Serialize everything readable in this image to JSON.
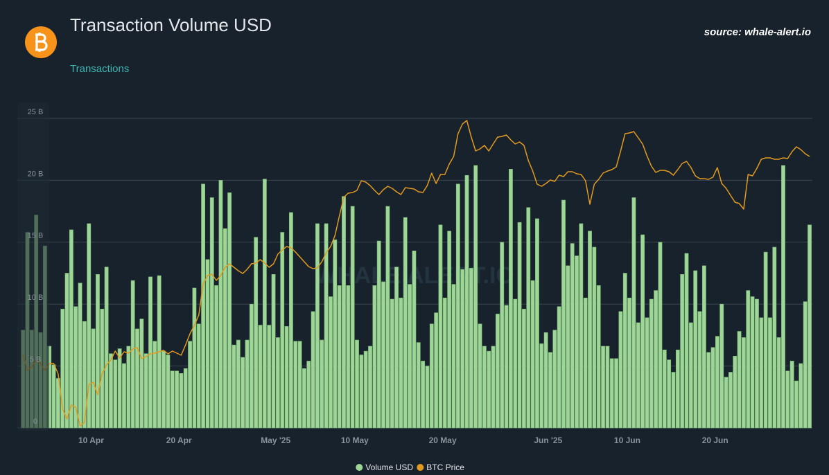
{
  "chart_data": {
    "type": "bar",
    "title": "Transaction Volume USD",
    "subtitle": "Transactions",
    "source": "source: whale-alert.io",
    "watermark": "WHALE ALERT.IO",
    "categories": [
      null,
      null,
      null,
      null,
      null,
      null,
      null,
      null,
      null,
      null,
      null,
      null,
      null,
      null,
      null,
      "10 Apr",
      null,
      null,
      null,
      null,
      null,
      null,
      null,
      null,
      null,
      null,
      null,
      null,
      null,
      null,
      null,
      null,
      null,
      null,
      null,
      "20 Apr",
      null,
      null,
      null,
      null,
      null,
      null,
      null,
      null,
      null,
      null,
      null,
      null,
      null,
      null,
      null,
      null,
      null,
      null,
      null,
      null,
      null,
      "May '25",
      null,
      null,
      null,
      null,
      null,
      null,
      null,
      null,
      null,
      null,
      null,
      null,
      null,
      null,
      null,
      null,
      null,
      "10 May",
      null,
      null,
      null,
      null,
      null,
      null,
      null,
      null,
      null,
      null,
      null,
      null,
      null,
      null,
      null,
      null,
      null,
      null,
      null,
      "20 May",
      null,
      null,
      null,
      null,
      null,
      null,
      null,
      null,
      null,
      null,
      null,
      null,
      null,
      null,
      null,
      null,
      null,
      null,
      null,
      null,
      null,
      null,
      null,
      "Jun '25",
      null,
      null,
      null,
      null,
      null,
      null,
      null,
      null,
      null,
      null,
      null,
      null,
      null,
      null,
      null,
      null,
      null,
      "10 Jun",
      null,
      null,
      null,
      null,
      null,
      null,
      null,
      null,
      null,
      null,
      null,
      null,
      null,
      null,
      null,
      null,
      null,
      null,
      null,
      "20 Jun",
      null,
      null,
      null,
      null,
      null,
      null,
      null,
      null,
      null,
      null,
      null,
      null,
      null,
      null,
      null,
      null,
      null,
      null,
      null,
      null,
      null,
      null
    ],
    "series": [
      {
        "name": "Volume USD",
        "color": "#9dd696",
        "values": [
          7.9,
          15.8,
          7.9,
          17.2,
          7.7,
          14.7,
          6.6,
          5.1,
          4.0,
          9.6,
          12.5,
          16.0,
          9.8,
          11.7,
          8.6,
          16.5,
          8.0,
          12.4,
          9.6,
          13.0,
          6.0,
          5.5,
          6.4,
          5.2,
          6.6,
          11.9,
          8.0,
          8.8,
          6.0,
          12.2,
          7.0,
          12.3,
          6.2,
          5.9,
          4.6,
          4.6,
          4.4,
          4.8,
          7.0,
          11.3,
          8.4,
          19.7,
          13.6,
          18.6,
          11.5,
          20.0,
          16.1,
          19.0,
          6.7,
          7.1,
          5.7,
          7.1,
          10.0,
          15.4,
          8.3,
          20.1,
          8.3,
          12.4,
          7.3,
          15.8,
          8.2,
          17.4,
          7.0,
          7.0,
          4.8,
          5.4,
          9.4,
          16.5,
          7.1,
          16.5,
          10.6,
          15.2,
          11.5,
          18.7,
          11.5,
          17.9,
          7.1,
          5.9,
          6.2,
          6.6,
          11.5,
          15.1,
          11.8,
          17.9,
          10.4,
          13.0,
          10.5,
          17.0,
          11.6,
          14.3,
          6.9,
          5.4,
          5.0,
          8.4,
          9.3,
          16.4,
          10.5,
          15.9,
          11.6,
          19.7,
          12.8,
          20.4,
          12.9,
          21.2,
          8.4,
          6.6,
          6.2,
          6.6,
          9.2,
          15.0,
          9.9,
          20.9,
          10.4,
          16.6,
          9.6,
          17.8,
          11.9,
          16.9,
          6.8,
          7.7,
          6.1,
          7.9,
          9.8,
          18.4,
          13.1,
          14.9,
          13.9,
          16.5,
          10.5,
          15.9,
          14.6,
          11.5,
          6.6,
          6.6,
          5.6,
          5.6,
          9.4,
          12.5,
          10.5,
          18.6,
          8.5,
          15.6,
          8.9,
          10.4,
          11.1,
          15.0,
          6.3,
          5.5,
          4.5,
          6.3,
          12.4,
          14.1,
          8.5,
          12.7,
          9.4,
          13.1,
          6.1,
          6.5,
          7.4,
          10.0,
          4.1,
          4.5,
          5.8,
          7.8,
          7.3,
          11.1,
          10.6,
          10.4,
          8.9,
          14.2,
          8.9,
          14.6,
          7.3,
          21.2,
          4.6,
          5.4,
          3.8,
          5.2,
          10.2,
          16.4
        ]
      },
      {
        "name": "BTC Price",
        "color": "#e39b1f",
        "type": "line",
        "axis": "y2",
        "values": [
          84480,
          82640,
          83040,
          83840,
          83440,
          82640,
          83440,
          83440,
          82240,
          78240,
          77040,
          78640,
          78400,
          76240,
          76640,
          81040,
          81280,
          79840,
          82240,
          83280,
          83840,
          84880,
          84080,
          84800,
          84640,
          85120,
          85280,
          84000,
          84240,
          84560,
          84640,
          84800,
          84960,
          84560,
          84880,
          84640,
          84400,
          85600,
          86880,
          87840,
          89040,
          92640,
          93600,
          93760,
          93040,
          93600,
          94560,
          94960,
          94560,
          94160,
          93840,
          94320,
          94960,
          95040,
          95440,
          95040,
          94560,
          94960,
          96080,
          96560,
          96960,
          96800,
          96320,
          95760,
          95200,
          94640,
          94400,
          94480,
          95200,
          96240,
          96960,
          98240,
          100480,
          102640,
          103120,
          103200,
          103440,
          104560,
          104400,
          104000,
          103440,
          102960,
          103520,
          103920,
          103680,
          103280,
          102960,
          103760,
          103680,
          103600,
          103280,
          103200,
          104000,
          105440,
          104240,
          105280,
          105280,
          106480,
          107360,
          110000,
          111120,
          111520,
          109600,
          108000,
          108240,
          108640,
          108000,
          108800,
          109600,
          109680,
          109840,
          109280,
          108800,
          109040,
          108640,
          106880,
          105680,
          104160,
          103920,
          104240,
          104640,
          104480,
          105200,
          105040,
          105600,
          105600,
          105360,
          105280,
          104560,
          101840,
          104160,
          104720,
          105440,
          105680,
          105840,
          106160,
          108000,
          110000,
          110080,
          110240,
          109520,
          108800,
          107440,
          106240,
          105520,
          105760,
          105760,
          105600,
          105200,
          105840,
          106560,
          106800,
          106080,
          105120,
          104800,
          104800,
          104720,
          104960,
          106080,
          104240,
          103680,
          102880,
          102080,
          101920,
          101280,
          105280,
          105120,
          106000,
          107040,
          107200,
          107200,
          107040,
          107040,
          107200,
          107120,
          107920,
          108480,
          108160,
          107680,
          107360
        ]
      }
    ],
    "ylim": [
      0,
      25
    ],
    "yticks": [
      0,
      {
        "value": 5,
        "label": "5 B"
      },
      {
        "value": 10,
        "label": "10 B"
      },
      {
        "value": 15,
        "label": "15 B"
      },
      {
        "value": 20,
        "label": "20 B"
      },
      {
        "value": 25,
        "label": "25 B"
      }
    ],
    "y2lim": [
      76000,
      111760
    ],
    "grid": true,
    "legend": "bottom"
  }
}
